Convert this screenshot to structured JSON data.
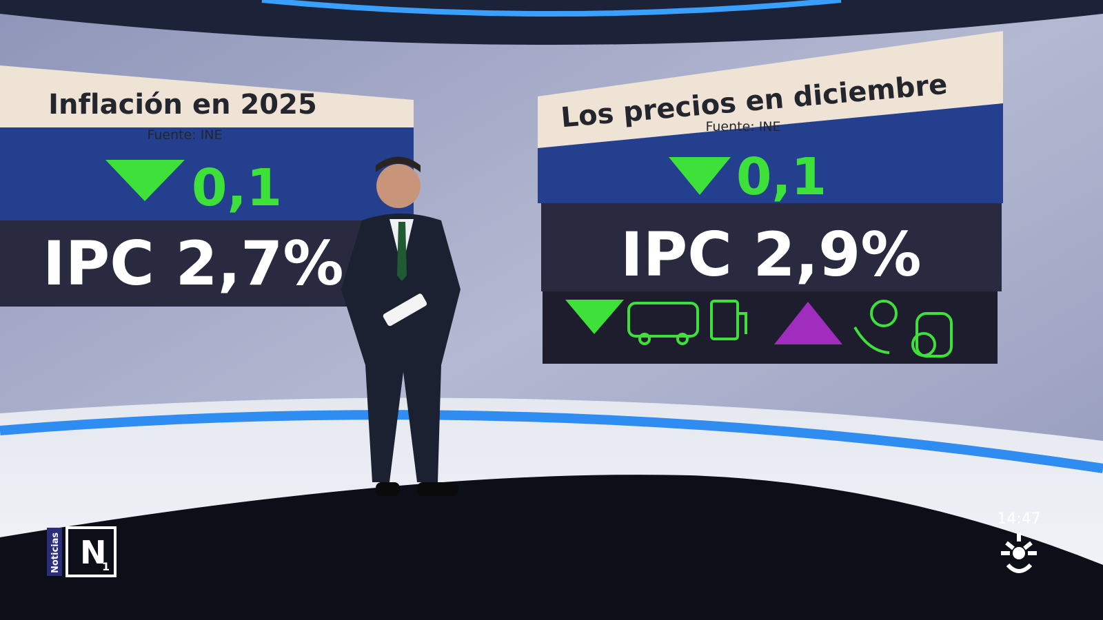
{
  "panels": [
    {
      "title": "Inflación en 2025",
      "source": "Fuente: INE",
      "change": "0,1",
      "headline": "IPC 2,7%"
    },
    {
      "title": "Los precios en diciembre",
      "source": "Fuente: INE",
      "change": "0,1",
      "headline": "IPC 2,9%"
    }
  ],
  "logo": {
    "label": "Noticias",
    "mark": "N",
    "number": "1"
  },
  "clock": "14:47"
}
